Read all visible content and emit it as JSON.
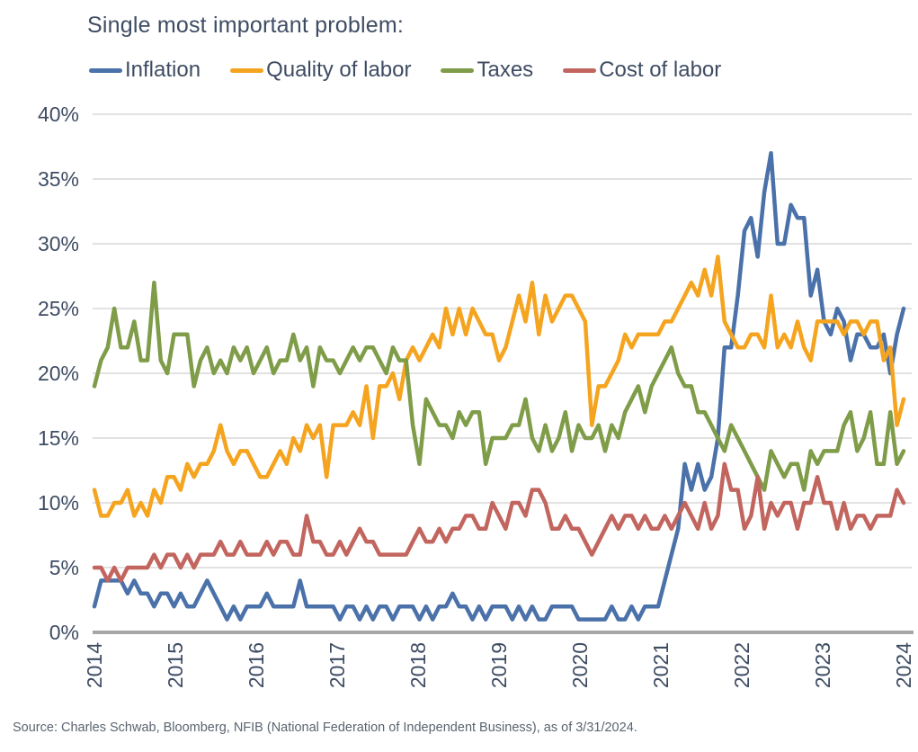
{
  "page": {
    "title": "Single most important problem:",
    "source_note": "Source: Charles Schwab, Bloomberg, NFIB (National Federation of Independent Business), as of 3/31/2024."
  },
  "colors": {
    "text": "#3e4c63",
    "source_text": "#5a6470",
    "gridline": "#d8d8d8",
    "axis_line": "#a6a6a6",
    "background": "#ffffff",
    "inflation": "#4a71a9",
    "quality_of_labor": "#f5a41f",
    "taxes": "#7f9c49",
    "cost_of_labor": "#c2655f"
  },
  "chart_data": {
    "type": "line",
    "title": "Single most important problem:",
    "frequency": "monthly",
    "x_start": "2014-01",
    "x_end": "2024-03",
    "x_tick_labels": [
      "2014",
      "2015",
      "2016",
      "2017",
      "2018",
      "2019",
      "2020",
      "2021",
      "2022",
      "2023",
      "2024"
    ],
    "y_tick_labels": [
      "0%",
      "5%",
      "10%",
      "15%",
      "20%",
      "25%",
      "30%",
      "35%",
      "40%"
    ],
    "ylim": [
      0,
      40
    ],
    "ytick_step": 5,
    "grid": "horizontal",
    "legend_position": "top",
    "xlabel": "",
    "ylabel": "",
    "series": [
      {
        "name": "Inflation",
        "color": "#4a71a9",
        "values": [
          2,
          4,
          4,
          4,
          4,
          3,
          4,
          3,
          3,
          2,
          3,
          3,
          2,
          3,
          2,
          2,
          3,
          4,
          3,
          2,
          1,
          2,
          1,
          2,
          2,
          2,
          3,
          2,
          2,
          2,
          2,
          4,
          2,
          2,
          2,
          2,
          2,
          1,
          2,
          2,
          1,
          2,
          1,
          2,
          2,
          1,
          2,
          2,
          2,
          1,
          2,
          1,
          2,
          2,
          3,
          2,
          2,
          1,
          2,
          1,
          2,
          2,
          2,
          1,
          2,
          1,
          2,
          1,
          1,
          2,
          2,
          2,
          2,
          1,
          1,
          1,
          1,
          1,
          2,
          1,
          1,
          2,
          1,
          2,
          2,
          2,
          4,
          6,
          8,
          13,
          11,
          13,
          11,
          12,
          15,
          22,
          22,
          26,
          31,
          32,
          29,
          34,
          37,
          30,
          30,
          33,
          32,
          32,
          26,
          28,
          24,
          23,
          25,
          24,
          21,
          23,
          23,
          22,
          22,
          23,
          20,
          23,
          25
        ]
      },
      {
        "name": "Quality of labor",
        "color": "#f5a41f",
        "values": [
          11,
          9,
          9,
          10,
          10,
          11,
          9,
          10,
          9,
          11,
          10,
          12,
          12,
          11,
          13,
          12,
          13,
          13,
          14,
          16,
          14,
          13,
          14,
          14,
          13,
          12,
          12,
          13,
          14,
          13,
          15,
          14,
          16,
          15,
          16,
          12,
          16,
          16,
          16,
          17,
          16,
          19,
          15,
          19,
          19,
          20,
          18,
          21,
          22,
          21,
          22,
          23,
          22,
          25,
          23,
          25,
          23,
          25,
          24,
          23,
          23,
          21,
          22,
          24,
          26,
          24,
          27,
          23,
          26,
          24,
          25,
          26,
          26,
          25,
          24,
          16,
          19,
          19,
          20,
          21,
          23,
          22,
          23,
          23,
          23,
          23,
          24,
          24,
          25,
          26,
          27,
          26,
          28,
          26,
          29,
          24,
          23,
          22,
          22,
          23,
          23,
          22,
          26,
          22,
          23,
          22,
          24,
          22,
          21,
          24,
          24,
          24,
          24,
          23,
          24,
          24,
          23,
          24,
          24,
          21,
          22,
          16,
          18
        ]
      },
      {
        "name": "Taxes",
        "color": "#7f9c49",
        "values": [
          19,
          21,
          22,
          25,
          22,
          22,
          24,
          21,
          21,
          27,
          21,
          20,
          23,
          23,
          23,
          19,
          21,
          22,
          20,
          21,
          20,
          22,
          21,
          22,
          20,
          21,
          22,
          20,
          21,
          21,
          23,
          21,
          22,
          19,
          22,
          21,
          21,
          20,
          21,
          22,
          21,
          22,
          22,
          21,
          20,
          22,
          21,
          21,
          16,
          13,
          18,
          17,
          16,
          16,
          15,
          17,
          16,
          17,
          17,
          13,
          15,
          15,
          15,
          16,
          16,
          18,
          15,
          14,
          16,
          14,
          15,
          17,
          14,
          16,
          15,
          15,
          16,
          14,
          16,
          15,
          17,
          18,
          19,
          17,
          19,
          20,
          21,
          22,
          20,
          19,
          19,
          17,
          17,
          16,
          15,
          14,
          16,
          15,
          14,
          13,
          12,
          11,
          14,
          13,
          12,
          13,
          13,
          11,
          14,
          13,
          14,
          14,
          14,
          16,
          17,
          14,
          15,
          17,
          13,
          13,
          17,
          13,
          14
        ]
      },
      {
        "name": "Cost of labor",
        "color": "#c2655f",
        "values": [
          5,
          5,
          4,
          5,
          4,
          5,
          5,
          5,
          5,
          6,
          5,
          6,
          6,
          5,
          6,
          5,
          6,
          6,
          6,
          7,
          6,
          6,
          7,
          6,
          6,
          6,
          7,
          6,
          7,
          7,
          6,
          6,
          9,
          7,
          7,
          6,
          6,
          7,
          6,
          7,
          8,
          7,
          7,
          6,
          6,
          6,
          6,
          6,
          7,
          8,
          7,
          7,
          8,
          7,
          8,
          8,
          9,
          9,
          8,
          8,
          10,
          9,
          8,
          10,
          10,
          9,
          11,
          11,
          10,
          8,
          8,
          9,
          8,
          8,
          7,
          6,
          7,
          8,
          9,
          8,
          9,
          9,
          8,
          9,
          8,
          8,
          9,
          8,
          9,
          10,
          9,
          8,
          10,
          8,
          9,
          13,
          11,
          11,
          8,
          9,
          12,
          8,
          10,
          9,
          10,
          10,
          8,
          10,
          10,
          12,
          10,
          10,
          8,
          10,
          8,
          9,
          9,
          8,
          9,
          9,
          9,
          11,
          10
        ]
      }
    ]
  }
}
